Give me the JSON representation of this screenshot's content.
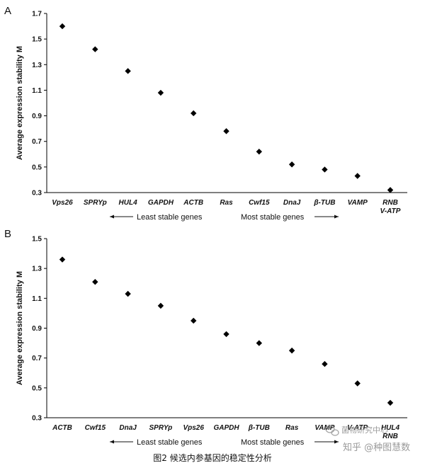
{
  "chart_data": [
    {
      "type": "scatter",
      "panel_label": "A",
      "ylabel": "Average expression stability M",
      "ylim": [
        0.3,
        1.7
      ],
      "yticks": [
        "0.3",
        "0.5",
        "0.7",
        "0.9",
        "1.1",
        "1.3",
        "1.5",
        "1.7"
      ],
      "categories": [
        "Vps26",
        "SPRYp",
        "HUL4",
        "GAPDH",
        "ACTB",
        "Ras",
        "Cwf15",
        "DnaJ",
        "β-TUB",
        "VAMP",
        "RNB V-ATP"
      ],
      "category_lines": [
        [
          "Vps26"
        ],
        [
          "SPRYp"
        ],
        [
          "HUL4"
        ],
        [
          "GAPDH"
        ],
        [
          "ACTB"
        ],
        [
          "Ras"
        ],
        [
          "Cwf15"
        ],
        [
          "DnaJ"
        ],
        [
          "β-TUB"
        ],
        [
          "VAMP"
        ],
        [
          "RNB",
          "V-ATP"
        ]
      ],
      "values": [
        1.6,
        1.42,
        1.25,
        1.08,
        0.92,
        0.78,
        0.62,
        0.52,
        0.48,
        0.43,
        0.32
      ],
      "left_arrow_label": "Least stable genes",
      "right_arrow_label": "Most stable genes",
      "grid": false
    },
    {
      "type": "scatter",
      "panel_label": "B",
      "ylabel": "Average expression stability M",
      "ylim": [
        0.3,
        1.5
      ],
      "yticks": [
        "0.3",
        "0.5",
        "0.7",
        "0.9",
        "1.1",
        "1.3",
        "1.5"
      ],
      "categories": [
        "ACTB",
        "Cwf15",
        "DnaJ",
        "SPRYp",
        "Vps26",
        "GAPDH",
        "β-TUB",
        "Ras",
        "VAMP",
        "V-ATP",
        "HUL4 RNB"
      ],
      "category_lines": [
        [
          "ACTB"
        ],
        [
          "Cwf15"
        ],
        [
          "DnaJ"
        ],
        [
          "SPRYp"
        ],
        [
          "Vps26"
        ],
        [
          "GAPDH"
        ],
        [
          "β-TUB"
        ],
        [
          "Ras"
        ],
        [
          "VAMP"
        ],
        [
          "V-ATP"
        ],
        [
          "HUL4",
          "RNB"
        ]
      ],
      "values": [
        1.36,
        1.21,
        1.13,
        1.05,
        0.95,
        0.86,
        0.8,
        0.75,
        0.66,
        0.53,
        0.4
      ],
      "left_arrow_label": "Least stable genes",
      "right_arrow_label": "Most stable genes",
      "grid": false
    }
  ],
  "caption": "图2  候选内参基因的稳定性分析",
  "watermark": {
    "account": "菌物研究中心",
    "site": "知乎 @种图慧数"
  },
  "colors": {
    "marker": "#000000",
    "axis": "#000000",
    "watermark": "#9a9a9a"
  }
}
